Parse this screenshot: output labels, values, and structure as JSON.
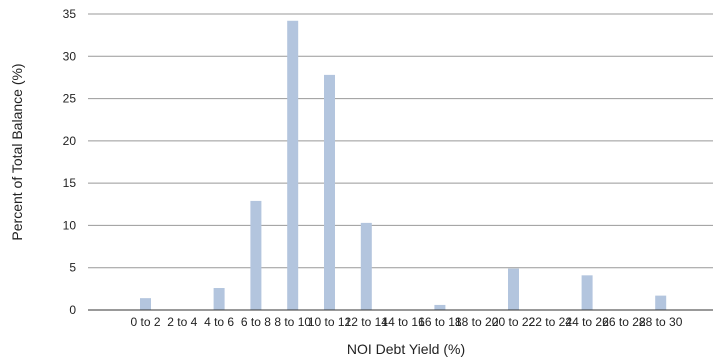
{
  "chart_data": {
    "type": "bar",
    "title": "",
    "xlabel": "NOI Debt Yield (%)",
    "ylabel": "Percent of Total Balance (%)",
    "ylim": [
      0,
      35
    ],
    "yticks": [
      0,
      5,
      10,
      15,
      20,
      25,
      30,
      35
    ],
    "grid": true,
    "categories": [
      "0 to 2",
      "2 to 4",
      "4 to 6",
      "6 to 8",
      "8 to 10",
      "10 to 12",
      "12 to 14",
      "14 to 16",
      "16 to 18",
      "18 to 20",
      "20 to 22",
      "22 to 24",
      "24 to 26",
      "26 to 28",
      "28 to 30"
    ],
    "values": [
      1.4,
      0,
      2.6,
      12.9,
      34.2,
      27.8,
      10.3,
      0,
      0.6,
      0,
      4.9,
      0,
      4.1,
      0,
      1.7
    ],
    "bar_color": "#b3c5de",
    "grid_color": "#999999",
    "axis_color": "#333333"
  }
}
